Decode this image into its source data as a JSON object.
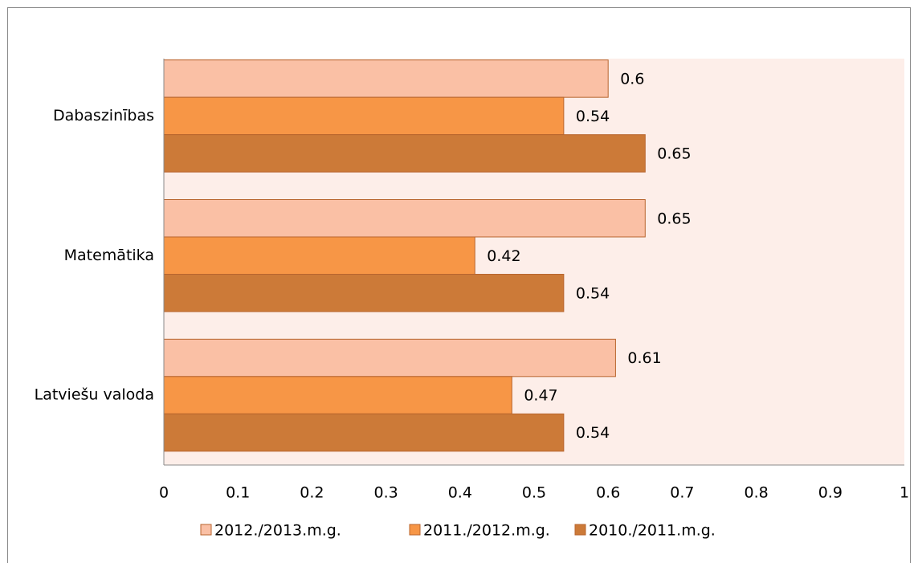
{
  "chart_data": {
    "type": "bar",
    "orientation": "horizontal",
    "categories": [
      "Dabaszinības",
      "Matemātika",
      "Latviešu valoda"
    ],
    "series": [
      {
        "name": "2012./2013.m.g.",
        "color": "#fac0a5",
        "values": [
          0.6,
          0.65,
          0.61
        ]
      },
      {
        "name": "2011./2012.m.g.",
        "color": "#f79646",
        "values": [
          0.54,
          0.42,
          0.47
        ]
      },
      {
        "name": "2010./2011.m.g.",
        "color": "#cc7a38",
        "values": [
          0.65,
          0.54,
          0.54
        ]
      }
    ],
    "xlim": [
      0,
      1
    ],
    "xticks": [
      0,
      0.1,
      0.2,
      0.3,
      0.4,
      0.5,
      0.6,
      0.7,
      0.8,
      0.9,
      1
    ],
    "grid": false,
    "legend": "bottom",
    "plot_background": "#fdeee9"
  }
}
